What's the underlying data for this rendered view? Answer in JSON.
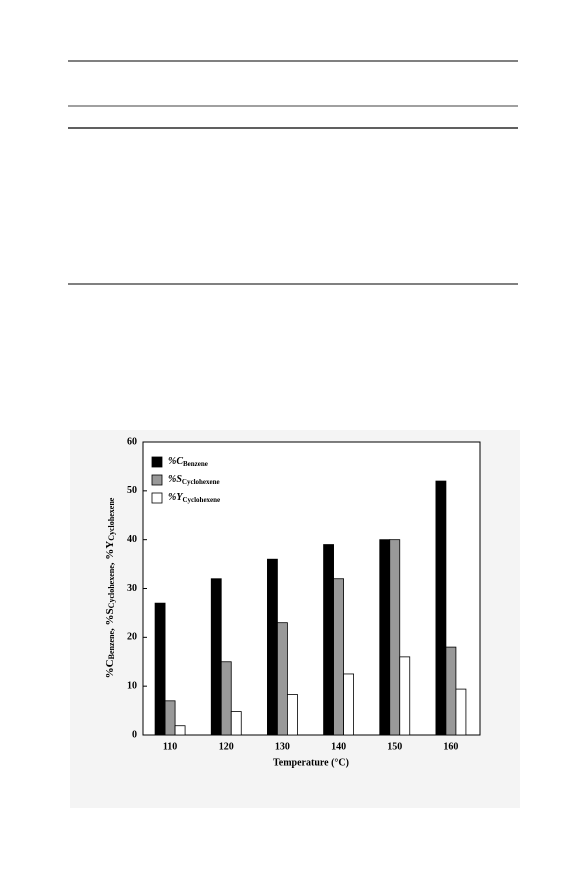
{
  "chart_data": {
    "type": "bar",
    "categories": [
      "110",
      "120",
      "130",
      "140",
      "150",
      "160"
    ],
    "series": [
      {
        "name": "%C",
        "subscript": "Benzene",
        "color": "#000000",
        "values": [
          27,
          32,
          36,
          39,
          40,
          52
        ]
      },
      {
        "name": "%S",
        "subscript": "Cyclohexene",
        "color": "#999999",
        "values": [
          7,
          15,
          23,
          32,
          40,
          18
        ]
      },
      {
        "name": "%Y",
        "subscript": "Cyclohexene",
        "color": "#ffffff",
        "values": [
          1.9,
          4.8,
          8.3,
          12.5,
          16,
          9.4
        ]
      }
    ],
    "ylabel_parts": [
      "%C",
      "Benzene",
      ", %S",
      "Cyclohexene",
      ", %Y",
      "Cyclohexene"
    ],
    "xlabel": "Temperature (°C)",
    "ylim": [
      0,
      60
    ],
    "yticks": [
      0,
      10,
      20,
      30,
      40,
      50,
      60
    ],
    "legend": "upper-left"
  }
}
